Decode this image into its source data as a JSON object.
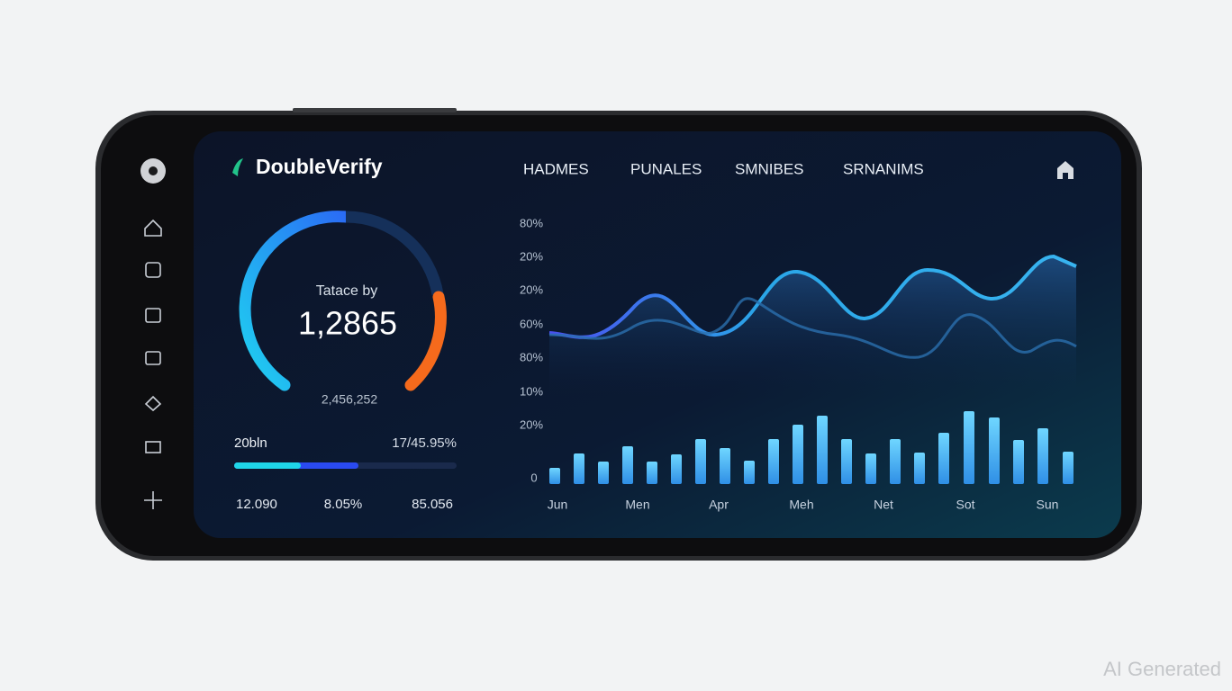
{
  "header": {
    "logo": "DoubleVerify",
    "nav": [
      "HADMES",
      "PUNALES",
      "SMNIBES",
      "SRNANIMS"
    ]
  },
  "gauge": {
    "label": "Tatace by",
    "value": "1,2865",
    "sub": "2,456,252"
  },
  "progress": {
    "label": "20bln",
    "value": "17/45.95%"
  },
  "stats": [
    "12.090",
    "8.05%",
    "85.056"
  ],
  "chart": {
    "y_labels": [
      "80%",
      "20%",
      "20%",
      "60%",
      "80%",
      "10%",
      "20%",
      "0"
    ],
    "x_labels": [
      "Jun",
      "Men",
      "Apr",
      "Meh",
      "Net",
      "Sot",
      "Sun"
    ]
  },
  "watermark": "AI Generated"
}
